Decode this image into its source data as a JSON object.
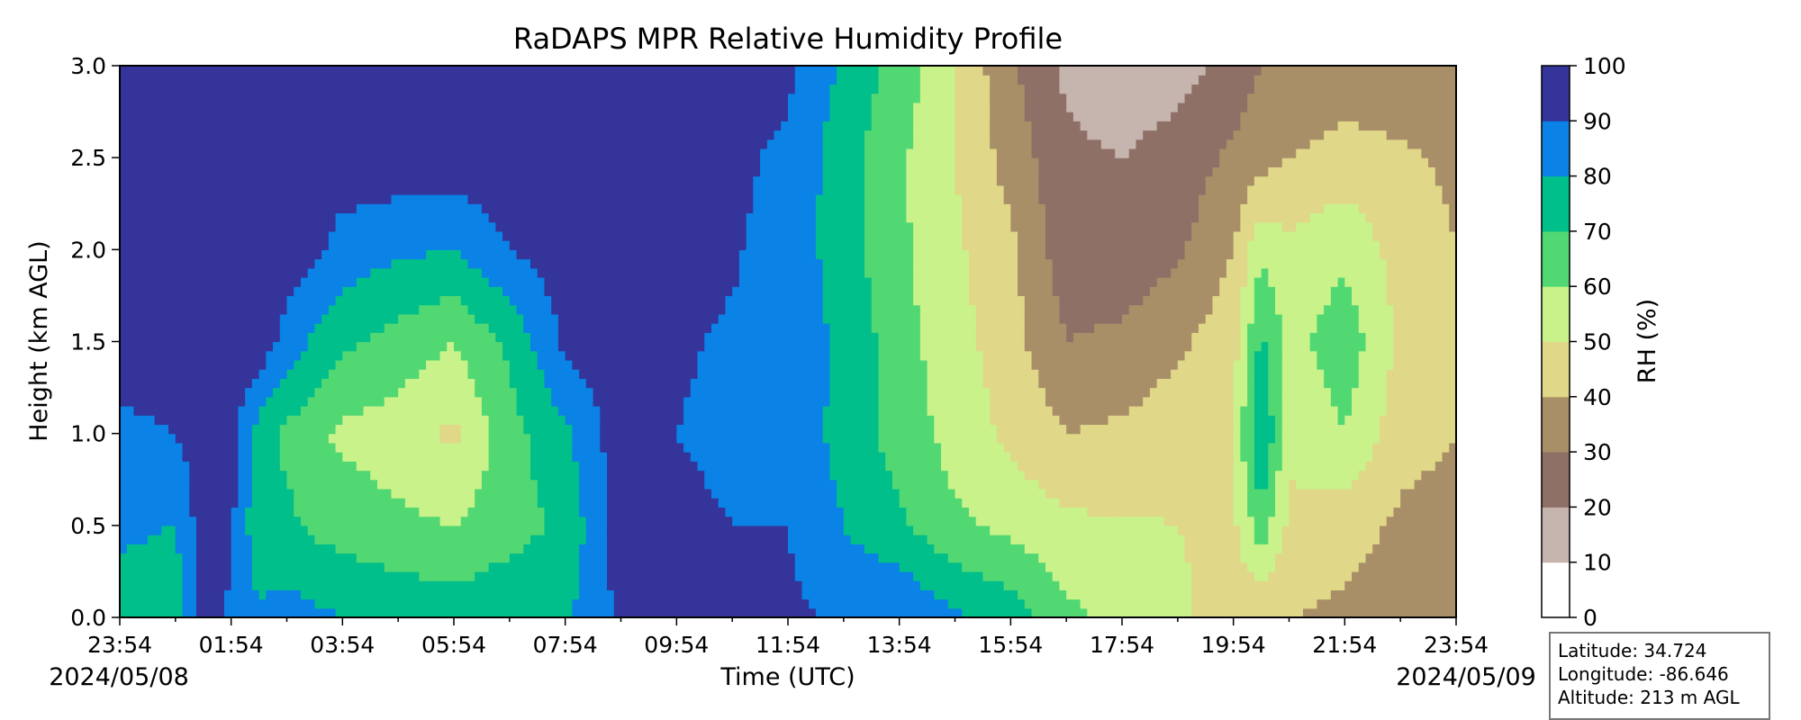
{
  "chart_data": {
    "type": "heatmap",
    "title": "RaDAPS MPR Relative Humidity Profile",
    "xlabel": "Time (UTC)",
    "ylabel": "Height (km AGL)",
    "x_tick_labels": [
      "23:54",
      "01:54",
      "03:54",
      "05:54",
      "07:54",
      "09:54",
      "11:54",
      "13:54",
      "15:54",
      "17:54",
      "19:54",
      "21:54",
      "23:54"
    ],
    "x_range": [
      "2024-05-08 23:54",
      "2024-05-09 23:54"
    ],
    "date_labels": {
      "start": "2024/05/08",
      "end": "2024/05/09"
    },
    "y_ticks": [
      0.0,
      0.5,
      1.0,
      1.5,
      2.0,
      2.5,
      3.0
    ],
    "y_tick_labels": [
      "0.0",
      "0.5",
      "1.0",
      "1.5",
      "2.0",
      "2.5",
      "3.0"
    ],
    "ylim": [
      0,
      3.0
    ],
    "colorbar": {
      "label": "RH (%)",
      "ticks": [
        0,
        10,
        20,
        30,
        40,
        50,
        60,
        70,
        80,
        90,
        100
      ],
      "levels": [
        {
          "range": [
            0,
            10
          ],
          "color": "#ffffff"
        },
        {
          "range": [
            10,
            20
          ],
          "color": "#c6b4af"
        },
        {
          "range": [
            20,
            30
          ],
          "color": "#8f7066"
        },
        {
          "range": [
            30,
            40
          ],
          "color": "#a98f67"
        },
        {
          "range": [
            40,
            50
          ],
          "color": "#e0d788"
        },
        {
          "range": [
            50,
            60
          ],
          "color": "#c9f28a"
        },
        {
          "range": [
            60,
            70
          ],
          "color": "#52d873"
        },
        {
          "range": [
            70,
            80
          ],
          "color": "#00bf8a"
        },
        {
          "range": [
            80,
            90
          ],
          "color": "#0a82e6"
        },
        {
          "range": [
            90,
            100
          ],
          "color": "#34349a"
        }
      ]
    },
    "time_hours": [
      0,
      1,
      1.5,
      2,
      2.5,
      3,
      3.5,
      4,
      5,
      6,
      7,
      8,
      9,
      9.5,
      10,
      11,
      12,
      13,
      14,
      15,
      16,
      17,
      18,
      19,
      20,
      20.5,
      21,
      22,
      23,
      24
    ],
    "rh_profiles": [
      [
        75,
        82,
        87,
        97,
        97,
        97,
        97
      ],
      [
        72,
        80,
        90,
        96,
        96,
        96,
        96
      ],
      [
        94,
        95,
        96,
        96,
        96,
        90,
        90
      ],
      [
        88,
        92,
        95,
        96,
        96,
        96,
        96
      ],
      [
        82,
        72,
        75,
        97,
        97,
        97,
        97
      ],
      [
        84,
        72,
        68,
        86,
        96,
        96,
        96
      ],
      [
        82,
        68,
        62,
        78,
        92,
        96,
        96
      ],
      [
        80,
        66,
        58,
        72,
        86,
        96,
        96
      ],
      [
        78,
        62,
        55,
        66,
        82,
        96,
        96
      ],
      [
        76,
        60,
        48,
        60,
        80,
        96,
        96
      ],
      [
        78,
        66,
        66,
        72,
        90,
        96,
        96
      ],
      [
        78,
        72,
        78,
        92,
        96,
        96,
        96
      ],
      [
        92,
        96,
        96,
        97,
        97,
        97,
        97
      ],
      [
        96,
        97,
        97,
        97,
        97,
        97,
        97
      ],
      [
        95,
        92,
        90,
        91,
        92,
        93,
        96
      ],
      [
        94,
        90,
        88,
        89,
        91,
        92,
        95
      ],
      [
        92,
        90,
        88,
        86,
        86,
        88,
        92
      ],
      [
        88,
        80,
        76,
        78,
        75,
        74,
        78
      ],
      [
        90,
        72,
        66,
        64,
        62,
        62,
        66
      ],
      [
        82,
        62,
        56,
        54,
        52,
        50,
        50
      ],
      [
        76,
        57,
        48,
        44,
        42,
        36,
        32
      ],
      [
        63,
        52,
        40,
        30,
        24,
        22,
        18
      ],
      [
        55,
        51,
        42,
        32,
        24,
        20,
        14
      ],
      [
        52,
        50,
        46,
        38,
        28,
        24,
        16
      ],
      [
        45,
        48,
        50,
        46,
        40,
        32,
        24
      ],
      [
        40,
        66,
        82,
        72,
        58,
        36,
        30
      ],
      [
        40,
        48,
        52,
        56,
        52,
        40,
        30
      ],
      [
        38,
        44,
        60,
        66,
        58,
        44,
        34
      ],
      [
        36,
        38,
        44,
        48,
        46,
        42,
        32
      ],
      [
        32,
        36,
        40,
        42,
        40,
        38,
        30
      ]
    ]
  },
  "info_box": {
    "latitude": "Latitude: 34.724",
    "longitude": "Longitude: -86.646",
    "altitude": "Altitude: 213 m AGL"
  }
}
